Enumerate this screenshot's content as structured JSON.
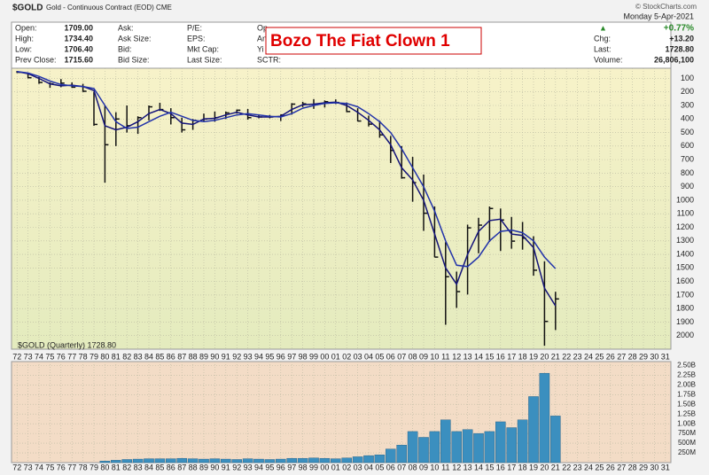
{
  "chart_data": {
    "type": "ohlc",
    "symbol": "$GOLD",
    "title": "Gold - Continuous Contract (EOD) CME",
    "copyright": "© StockCharts.com",
    "date": "Monday  5-Apr-2021",
    "quote_columns": [
      [
        {
          "label": "Open:",
          "value": "1709.00"
        },
        {
          "label": "High:",
          "value": "1734.40"
        },
        {
          "label": "Low:",
          "value": "1706.40"
        },
        {
          "label": "Prev Close:",
          "value": "1715.60"
        }
      ],
      [
        {
          "label": "Ask:"
        },
        {
          "label": "Ask Size:"
        },
        {
          "label": "Bid:"
        },
        {
          "label": "Bid Size:"
        }
      ],
      [
        {
          "label": "P/E:"
        },
        {
          "label": "EPS:"
        },
        {
          "label": "Mkt Cap:"
        },
        {
          "label": "Last Size:"
        }
      ],
      [
        {
          "label": "Op"
        },
        {
          "label": "An"
        },
        {
          "label": "Yi"
        },
        {
          "label": "SCTR:"
        }
      ]
    ],
    "change_arrow": "▲",
    "change_pct": "+0.77%",
    "summary": [
      {
        "label": "Chg:",
        "value": "+13.20"
      },
      {
        "label": "Last:",
        "value": "1728.80"
      },
      {
        "label": "Volume:",
        "value": "26,806,100"
      }
    ],
    "annotation": "Bozo The Fiat Clown 1",
    "legend": "$GOLD (Quarterly) 1728.80",
    "categories": [
      "72",
      "73",
      "74",
      "75",
      "76",
      "77",
      "78",
      "79",
      "80",
      "81",
      "82",
      "83",
      "84",
      "85",
      "86",
      "87",
      "88",
      "89",
      "90",
      "91",
      "92",
      "93",
      "94",
      "95",
      "96",
      "97",
      "98",
      "99",
      "00",
      "01",
      "02",
      "03",
      "04",
      "05",
      "06",
      "07",
      "08",
      "09",
      "10",
      "11",
      "12",
      "13",
      "14",
      "15",
      "16",
      "17",
      "18",
      "19",
      "20",
      "21",
      "22",
      "23",
      "24",
      "25",
      "26",
      "27",
      "28",
      "29",
      "30",
      "31"
    ],
    "high": [
      60,
      100,
      140,
      170,
      165,
      170,
      200,
      450,
      870,
      600,
      500,
      510,
      410,
      340,
      440,
      500,
      480,
      415,
      420,
      400,
      360,
      405,
      395,
      395,
      415,
      368,
      312,
      325,
      315,
      290,
      350,
      417,
      455,
      538,
      725,
      841,
      1011,
      1226,
      1421,
      1920,
      1795,
      1696,
      1392,
      1307,
      1375,
      1358,
      1365,
      1557,
      2075,
      1959,
      null,
      null,
      null,
      null,
      null,
      null,
      null,
      null,
      null,
      null
    ],
    "low": [
      45,
      60,
      90,
      130,
      105,
      130,
      140,
      200,
      300,
      350,
      300,
      380,
      300,
      280,
      320,
      390,
      400,
      360,
      345,
      345,
      330,
      326,
      370,
      370,
      367,
      283,
      273,
      253,
      263,
      255,
      278,
      320,
      375,
      412,
      525,
      600,
      680,
      810,
      1045,
      1310,
      1527,
      1180,
      1130,
      1046,
      1061,
      1123,
      1160,
      1266,
      1451,
      1676,
      null,
      null,
      null,
      null,
      null,
      null,
      null,
      null,
      null,
      null
    ],
    "close": [
      55,
      95,
      130,
      140,
      135,
      165,
      195,
      440,
      590,
      400,
      450,
      390,
      310,
      330,
      390,
      480,
      410,
      400,
      390,
      355,
      335,
      390,
      385,
      385,
      370,
      290,
      288,
      290,
      272,
      278,
      345,
      415,
      438,
      517,
      632,
      834,
      870,
      1096,
      1420,
      1565,
      1675,
      1204,
      1184,
      1061,
      1146,
      1302,
      1280,
      1517,
      1895,
      1729,
      null,
      null,
      null,
      null,
      null,
      null,
      null,
      null,
      null,
      null
    ],
    "bar_color": "#111111",
    "moving_averages": [
      {
        "color": "#14147a",
        "values": [
          50,
          65,
          100,
          140,
          155,
          150,
          160,
          190,
          450,
          480,
          460,
          420,
          360,
          330,
          360,
          430,
          440,
          400,
          395,
          370,
          350,
          370,
          385,
          385,
          380,
          330,
          295,
          290,
          280,
          275,
          300,
          350,
          410,
          480,
          590,
          760,
          850,
          1000,
          1250,
          1500,
          1620,
          1400,
          1230,
          1150,
          1140,
          1250,
          1260,
          1350,
          1650,
          1780,
          null,
          null,
          null,
          null,
          null,
          null,
          null,
          null,
          null,
          null
        ]
      },
      {
        "color": "#2233aa",
        "values": [
          50,
          60,
          85,
          120,
          145,
          155,
          160,
          175,
          300,
          420,
          470,
          460,
          420,
          380,
          350,
          380,
          410,
          420,
          410,
          390,
          370,
          360,
          370,
          380,
          385,
          360,
          320,
          300,
          285,
          280,
          285,
          310,
          360,
          420,
          500,
          620,
          760,
          900,
          1080,
          1300,
          1480,
          1490,
          1420,
          1300,
          1230,
          1220,
          1240,
          1300,
          1420,
          1505,
          null,
          null,
          null,
          null,
          null,
          null,
          null,
          null,
          null,
          null
        ]
      }
    ],
    "ylim": [
      25,
      2100
    ],
    "y_inverted": true,
    "yticks": [
      100,
      200,
      300,
      400,
      500,
      600,
      700,
      800,
      900,
      1000,
      1100,
      1200,
      1300,
      1400,
      1500,
      1600,
      1700,
      1800,
      1900,
      2000
    ],
    "grid": true,
    "volume": {
      "color": "#3b8fbf",
      "values": [
        null,
        null,
        null,
        null,
        null,
        null,
        null,
        null,
        40,
        60,
        80,
        90,
        100,
        100,
        100,
        110,
        100,
        90,
        100,
        90,
        80,
        100,
        90,
        80,
        90,
        110,
        110,
        120,
        110,
        100,
        120,
        150,
        180,
        200,
        350,
        450,
        800,
        650,
        800,
        1100,
        800,
        850,
        750,
        800,
        1050,
        900,
        1100,
        1700,
        2300,
        1200,
        null,
        null,
        null,
        null,
        null,
        null,
        null,
        null,
        null,
        null
      ],
      "ylim": [
        0,
        2600
      ],
      "yticks": [
        {
          "value": 250,
          "label": "250M"
        },
        {
          "value": 500,
          "label": "500M"
        },
        {
          "value": 750,
          "label": "750M"
        },
        {
          "value": 1000,
          "label": "1.00B"
        },
        {
          "value": 1250,
          "label": "1.25B"
        },
        {
          "value": 1500,
          "label": "1.50B"
        },
        {
          "value": 1750,
          "label": "1.75B"
        },
        {
          "value": 2000,
          "label": "2.00B"
        },
        {
          "value": 2250,
          "label": "2.25B"
        },
        {
          "value": 2500,
          "label": "2.50B"
        }
      ]
    }
  }
}
